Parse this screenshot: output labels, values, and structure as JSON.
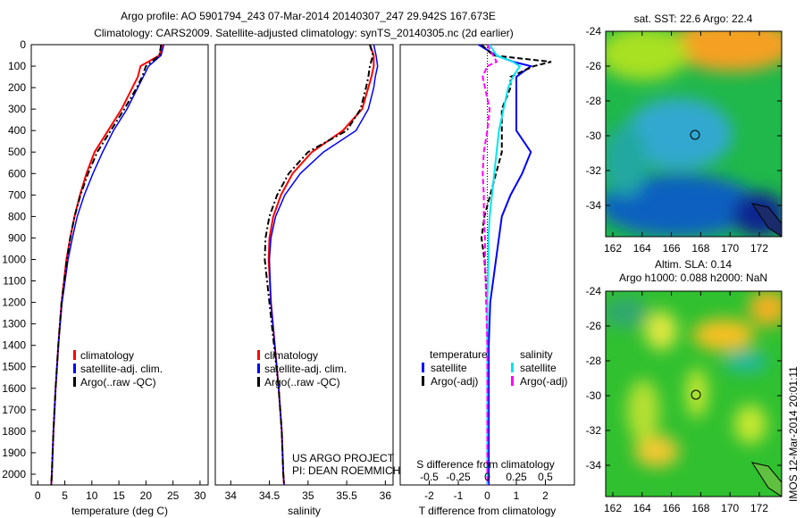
{
  "title_line1": "Argo profile: AO 5901794_243 07-Mar-2014 20140307_247 29.942S 167.673E",
  "title_line2": "Climatology: CARS2009. Satellite-adjusted climatology: synTS_20140305.nc (2d earlier)",
  "credit": [
    "US ARGO PROJECT",
    "PI: DEAN ROEMMICH"
  ],
  "timestamp": "IMOS 12-Mar-2014 20:01:11",
  "colors": {
    "climatology": "#ff0000",
    "satellite": "#0000ff",
    "argo": "#000000",
    "sal_satellite": "#00e5ee",
    "sal_argo": "#ff00ff"
  },
  "chart_data": [
    {
      "type": "line",
      "name": "temperature",
      "xlabel": "temperature (deg C)",
      "xlim": [
        -1.2,
        31.5
      ],
      "ylim": [
        0,
        2050
      ],
      "xticks": [
        "0",
        "5",
        "10",
        "15",
        "20",
        "25",
        "30"
      ],
      "xtick_values": [
        0,
        5,
        10,
        15,
        20,
        25,
        30
      ],
      "yticks": [
        "0",
        "100",
        "200",
        "300",
        "400",
        "500",
        "600",
        "700",
        "800",
        "900",
        "1000",
        "1100",
        "1200",
        "1300",
        "1400",
        "1500",
        "1600",
        "1700",
        "1800",
        "1900",
        "2000"
      ],
      "legend": [
        "climatology",
        "satellite-adj. clim.",
        "Argo(..raw -QC)"
      ],
      "depth": [
        0,
        50,
        100,
        150,
        200,
        300,
        400,
        500,
        600,
        700,
        800,
        900,
        1000,
        1200,
        1400,
        1600,
        1800,
        2000,
        2050
      ],
      "series": [
        {
          "name": "climatology",
          "values": [
            23,
            22.5,
            19,
            18.5,
            17.5,
            15.5,
            13,
            10.5,
            9,
            7.8,
            6.8,
            6,
            5.3,
            4.4,
            3.8,
            3.3,
            2.9,
            2.6,
            2.5
          ]
        },
        {
          "name": "satellite-adj. clim.",
          "values": [
            23.3,
            22.8,
            20.5,
            19.5,
            18.5,
            16.5,
            14,
            12,
            10.2,
            8.6,
            7.3,
            6.4,
            5.6,
            4.5,
            3.8,
            3.3,
            2.9,
            2.6,
            2.5
          ]
        },
        {
          "name": "Argo(..raw -QC)",
          "values": [
            22.8,
            22.5,
            20,
            19.3,
            18.3,
            16,
            13.5,
            11,
            9.3,
            7.9,
            6.8,
            6,
            5.4,
            4.4,
            3.8,
            3.3,
            2.9,
            2.6,
            2.5
          ]
        }
      ]
    },
    {
      "type": "line",
      "name": "salinity",
      "xlabel": "salinity",
      "xlim": [
        33.8,
        36.1
      ],
      "ylim": [
        0,
        2050
      ],
      "xticks": [
        "34",
        "34.5",
        "35",
        "35.5",
        "36"
      ],
      "xtick_values": [
        34,
        34.5,
        35,
        35.5,
        36
      ],
      "legend": [
        "climatology",
        "satellite-adj. clim.",
        "Argo(..raw -QC)"
      ],
      "depth": [
        0,
        50,
        100,
        150,
        200,
        300,
        400,
        500,
        600,
        700,
        800,
        900,
        1000,
        1200,
        1400,
        1600,
        1800,
        2000,
        2050
      ],
      "series": [
        {
          "name": "climatology",
          "values": [
            35.8,
            35.85,
            35.85,
            35.82,
            35.78,
            35.7,
            35.45,
            35.05,
            34.8,
            34.65,
            34.55,
            34.5,
            34.49,
            34.52,
            34.57,
            34.62,
            34.66,
            34.68,
            34.69
          ]
        },
        {
          "name": "satellite-adj. clim.",
          "values": [
            35.85,
            35.88,
            35.9,
            35.87,
            35.85,
            35.78,
            35.62,
            35.2,
            34.9,
            34.7,
            34.58,
            34.52,
            34.5,
            34.52,
            34.57,
            34.62,
            34.66,
            34.68,
            34.69
          ]
        },
        {
          "name": "Argo(..raw -QC)",
          "values": [
            35.8,
            35.84,
            35.8,
            35.78,
            35.75,
            35.68,
            35.5,
            35.0,
            34.75,
            34.6,
            34.5,
            34.45,
            34.44,
            34.5,
            34.56,
            34.62,
            34.66,
            34.68,
            34.69
          ]
        }
      ]
    },
    {
      "type": "line",
      "name": "differences",
      "xlabel": "T difference from climatology",
      "x2label": "S difference from climatology",
      "xlim": [
        -3,
        3
      ],
      "x2lim": [
        -0.75,
        0.75
      ],
      "ylim": [
        0,
        2050
      ],
      "xticks": [
        "-2",
        "-1",
        "0",
        "1",
        "2"
      ],
      "xtick_values": [
        -2,
        -1,
        0,
        1,
        2
      ],
      "x2ticks": [
        "-0.5",
        "-0.25",
        "0",
        "0.25",
        "0.5"
      ],
      "x2tick_values": [
        -0.5,
        -0.25,
        0,
        0.25,
        0.5
      ],
      "legend_headers": [
        "temperature",
        "salinity"
      ],
      "legend": [
        "satellite",
        "Argo(-adj)",
        "satellite",
        "Argo(-adj)"
      ],
      "depth": [
        0,
        50,
        80,
        100,
        150,
        200,
        300,
        400,
        500,
        600,
        700,
        800,
        900,
        1000,
        1200,
        1400,
        1600,
        1800,
        2000,
        2050
      ],
      "series": [
        {
          "name": "T satellite",
          "axis": "T",
          "values": [
            -0.3,
            0.3,
            0.9,
            1.5,
            1.0,
            1.0,
            1.0,
            1.0,
            1.5,
            1.2,
            0.8,
            0.5,
            0.4,
            0.3,
            0.1,
            0.05,
            0.05,
            0.05,
            0.05,
            0.05
          ]
        },
        {
          "name": "T Argo(-adj)",
          "axis": "T",
          "values": [
            -0.2,
            0.2,
            2.2,
            1.6,
            0.8,
            0.8,
            0.5,
            0.5,
            0.5,
            0.3,
            0.1,
            -0.1,
            -0.2,
            -0.1,
            0,
            0,
            0,
            0,
            0,
            0
          ]
        },
        {
          "name": "S satellite",
          "axis": "S",
          "values": [
            0.02,
            0.08,
            0.22,
            0.28,
            0.22,
            0.18,
            0.14,
            0.1,
            0.08,
            0.06,
            0.04,
            0.02,
            0.01,
            0.01,
            0,
            0,
            0,
            0,
            0,
            0
          ]
        },
        {
          "name": "S Argo(-adj)",
          "axis": "S",
          "values": [
            0,
            0.05,
            0.08,
            0,
            -0.04,
            -0.02,
            0.02,
            0,
            -0.03,
            -0.04,
            -0.03,
            -0.03,
            -0.02,
            -0.02,
            -0.01,
            0,
            0,
            0,
            0,
            0
          ]
        }
      ]
    }
  ],
  "maps": [
    {
      "title": "sat. SST: 22.6 Argo: 22.4",
      "xticks": [
        "162",
        "164",
        "166",
        "168",
        "170",
        "172"
      ],
      "yticks": [
        "-24",
        "-26",
        "-28",
        "-30",
        "-32",
        "-34"
      ]
    },
    {
      "title1": "Altim. SLA: 0.14",
      "title2": "Argo h1000: 0.088 h2000: NaN",
      "xticks": [
        "162",
        "164",
        "166",
        "168",
        "170",
        "172"
      ],
      "yticks": [
        "-24",
        "-26",
        "-28",
        "-30",
        "-32",
        "-34"
      ]
    }
  ]
}
